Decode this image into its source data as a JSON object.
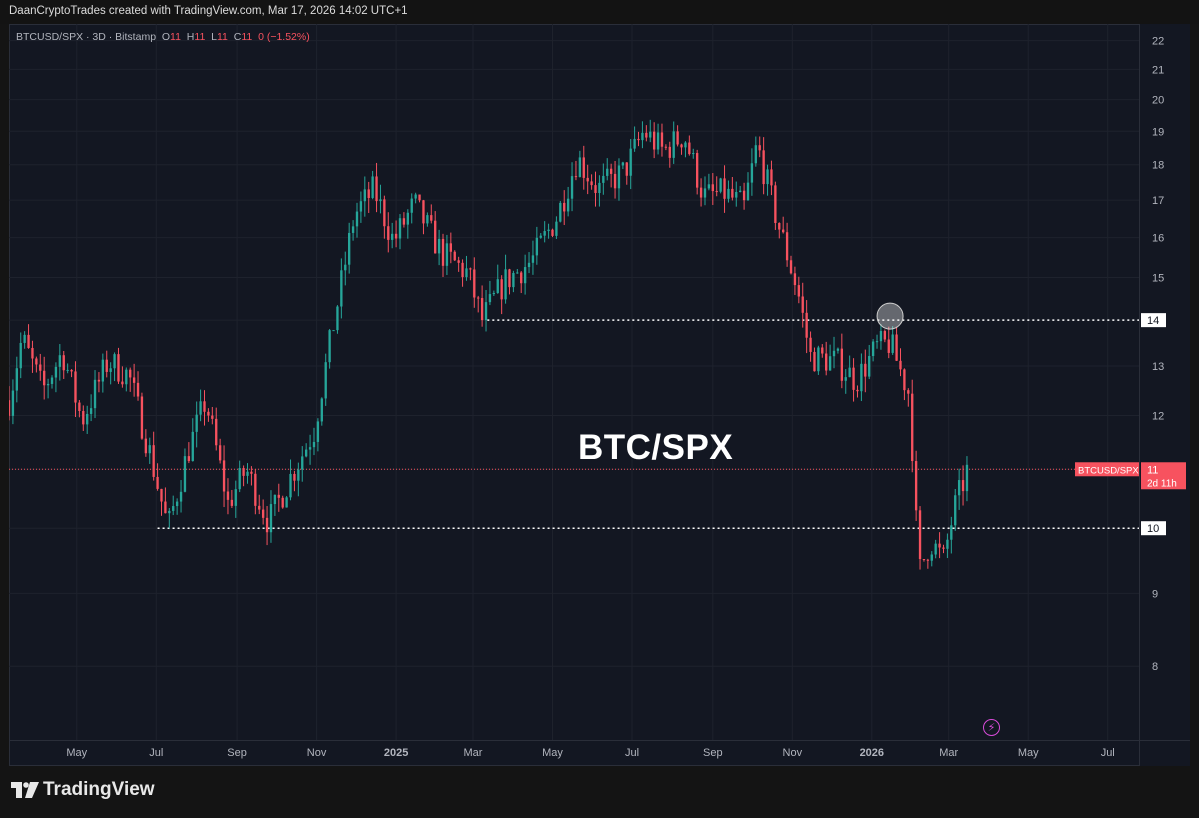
{
  "header": {
    "caption": "DaanCryptoTrades created with TradingView.com, Mar 17, 2026 14:02 UTC+1"
  },
  "legend": {
    "symbol": "BTCUSD/SPX · 3D · Bitstamp",
    "o_label": "O",
    "o_value": "11",
    "h_label": "H",
    "h_value": "11",
    "l_label": "L",
    "l_value": "11",
    "c_label": "C",
    "c_value": "11",
    "change": "0 (−1.52%)"
  },
  "annotation_title": "BTC/SPX",
  "brand": {
    "name": "TradingView"
  },
  "colors": {
    "up": "#26a69a",
    "down": "#f7525f",
    "background": "#131722",
    "grid": "#1e222d",
    "axis_text": "#b2b5be",
    "level_line": "#ffffff"
  },
  "chart_data": {
    "type": "candlestick",
    "symbol": "BTCUSD/SPX",
    "timeframe": "3D",
    "exchange": "Bitstamp",
    "y_scale": "log",
    "y_ticks": [
      8,
      9,
      10,
      11,
      12,
      13,
      14,
      15,
      16,
      17,
      18,
      19,
      20,
      21,
      22
    ],
    "x_ticks": [
      "May",
      "Jul",
      "Sep",
      "Nov",
      "2025",
      "Mar",
      "May",
      "Jul",
      "Sep",
      "Nov",
      "2026",
      "Mar",
      "May",
      "Jul"
    ],
    "x_tick_dates": [
      "2024-05-01",
      "2024-07-01",
      "2024-09-01",
      "2024-11-01",
      "2025-01-01",
      "2025-03-01",
      "2025-05-01",
      "2025-07-01",
      "2025-09-01",
      "2025-11-01",
      "2026-01-01",
      "2026-03-01",
      "2026-05-01",
      "2026-07-01"
    ],
    "x_range": [
      "2024-03-10",
      "2026-07-25"
    ],
    "y_range": [
      7.1,
      22.6
    ],
    "price_path": [
      [
        "2024-03-10",
        12.3
      ],
      [
        "2024-03-20",
        13.6
      ],
      [
        "2024-04-05",
        12.5
      ],
      [
        "2024-04-20",
        13.3
      ],
      [
        "2024-05-05",
        11.9
      ],
      [
        "2024-05-25",
        13.1
      ],
      [
        "2024-06-10",
        12.8
      ],
      [
        "2024-06-25",
        11.4
      ],
      [
        "2024-07-10",
        10.0
      ],
      [
        "2024-07-25",
        11.3
      ],
      [
        "2024-08-08",
        12.3
      ],
      [
        "2024-08-25",
        10.4
      ],
      [
        "2024-09-08",
        11.0
      ],
      [
        "2024-09-25",
        10.1
      ],
      [
        "2024-10-15",
        11.0
      ],
      [
        "2024-10-30",
        11.7
      ],
      [
        "2024-11-12",
        13.6
      ],
      [
        "2024-11-30",
        16.6
      ],
      [
        "2024-12-15",
        17.3
      ],
      [
        "2024-12-30",
        15.9
      ],
      [
        "2025-01-15",
        16.9
      ],
      [
        "2025-02-05",
        15.6
      ],
      [
        "2025-02-25",
        15.1
      ],
      [
        "2025-03-08",
        14.0
      ],
      [
        "2025-03-25",
        14.9
      ],
      [
        "2025-04-15",
        15.4
      ],
      [
        "2025-05-05",
        16.6
      ],
      [
        "2025-05-20",
        18.2
      ],
      [
        "2025-06-05",
        17.3
      ],
      [
        "2025-06-25",
        17.8
      ],
      [
        "2025-07-10",
        19.0
      ],
      [
        "2025-07-25",
        18.4
      ],
      [
        "2025-08-10",
        18.9
      ],
      [
        "2025-08-25",
        17.1
      ],
      [
        "2025-09-10",
        17.2
      ],
      [
        "2025-09-25",
        16.8
      ],
      [
        "2025-10-05",
        18.6
      ],
      [
        "2025-10-20",
        16.5
      ],
      [
        "2025-11-05",
        14.7
      ],
      [
        "2025-11-15",
        13.2
      ],
      [
        "2025-12-05",
        13.1
      ],
      [
        "2025-12-20",
        12.7
      ],
      [
        "2026-01-05",
        13.4
      ],
      [
        "2026-01-15",
        13.5
      ],
      [
        "2026-01-30",
        12.4
      ],
      [
        "2026-02-06",
        9.3
      ],
      [
        "2026-02-15",
        9.8
      ],
      [
        "2026-02-25",
        9.5
      ],
      [
        "2026-03-05",
        10.3
      ],
      [
        "2026-03-17",
        11.1
      ]
    ],
    "horizontal_levels": [
      {
        "value": 14,
        "label": "14",
        "from": "2025-03-12"
      },
      {
        "value": 10,
        "label": "10",
        "from": "2024-07-02"
      }
    ],
    "last_price": {
      "value": 11,
      "symbol_label": "BTCUSD/SPX",
      "label": "11",
      "countdown": "2d 11h"
    },
    "highlight": {
      "date": "2026-01-15",
      "value": 14.0
    }
  }
}
